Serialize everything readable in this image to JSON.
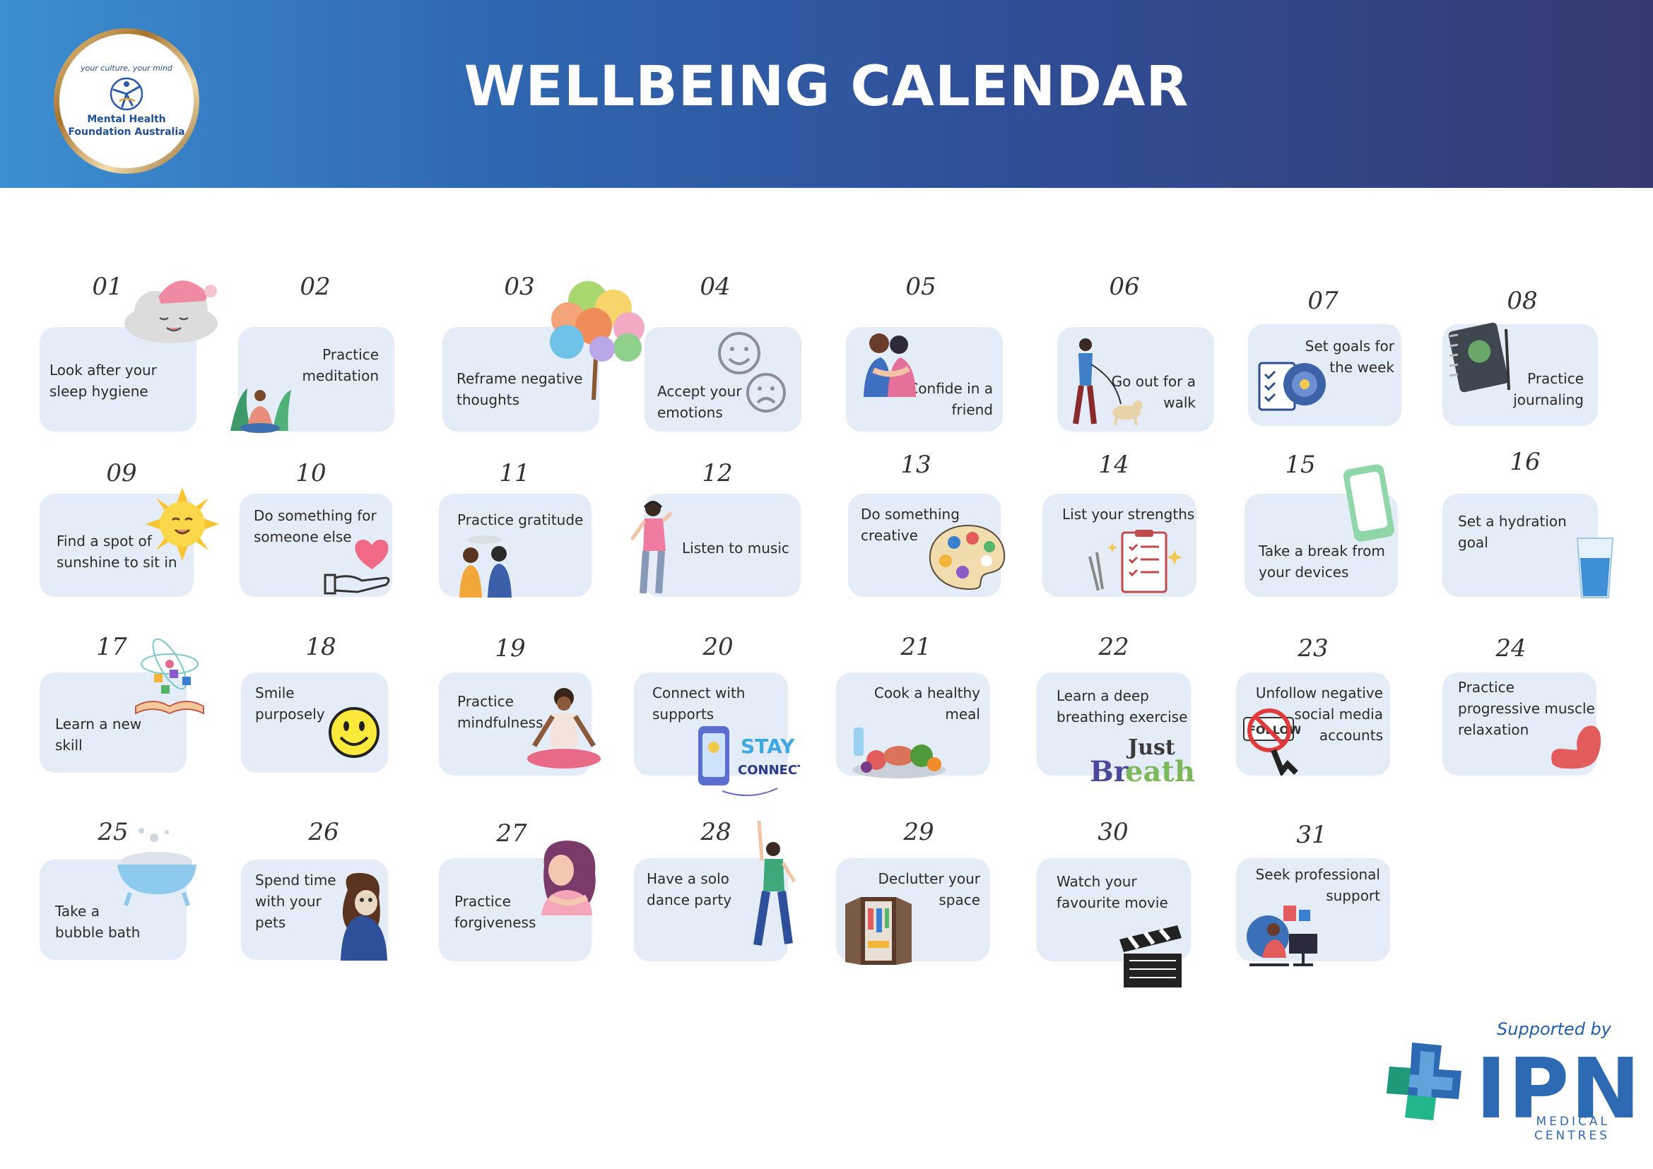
{
  "header": {
    "title": "WELLBEING CALENDAR",
    "logo_tagline": "your culture, your mind",
    "logo_name": "Mental Health\nFoundation Australia"
  },
  "days": [
    {
      "num": "01",
      "text": "Look after your\nsleep hygiene",
      "icon": "sleepy-cloud-icon"
    },
    {
      "num": "02",
      "text": "Practice\nmeditation",
      "icon": "meditating-woman-icon"
    },
    {
      "num": "03",
      "text": "Reframe negative\nthoughts",
      "icon": "colorful-tree-icon"
    },
    {
      "num": "04",
      "text": "Accept your\nemotions",
      "icon": "happy-sad-faces-icon"
    },
    {
      "num": "05",
      "text": "Confide in a\nfriend",
      "icon": "hugging-friends-icon"
    },
    {
      "num": "06",
      "text": "Go out for a\nwalk",
      "icon": "dog-walk-icon"
    },
    {
      "num": "07",
      "text": "Set goals for\nthe week",
      "icon": "goal-checklist-icon"
    },
    {
      "num": "08",
      "text": "Practice\njournaling",
      "icon": "journal-icon"
    },
    {
      "num": "09",
      "text": "Find a spot of\nsunshine to sit in",
      "icon": "sun-icon"
    },
    {
      "num": "10",
      "text": "Do something for\nsomeone else",
      "icon": "heart-in-hand-icon"
    },
    {
      "num": "11",
      "text": "Practice gratitude",
      "icon": "grateful-couple-icon"
    },
    {
      "num": "12",
      "text": "Listen to music",
      "icon": "headphones-person-icon"
    },
    {
      "num": "13",
      "text": "Do something\ncreative",
      "icon": "paint-palette-icon"
    },
    {
      "num": "14",
      "text": "List your strengths",
      "icon": "clipboard-list-icon"
    },
    {
      "num": "15",
      "text": "Take a break from\nyour devices",
      "icon": "smartphone-icon"
    },
    {
      "num": "16",
      "text": "Set a hydration\ngoal",
      "icon": "water-glass-icon"
    },
    {
      "num": "17",
      "text": "Learn a new\nskill",
      "icon": "open-book-icon"
    },
    {
      "num": "18",
      "text": "Smile\npurposely",
      "icon": "smiley-face-icon"
    },
    {
      "num": "19",
      "text": "Practice\nmindfulness",
      "icon": "lotus-pose-icon"
    },
    {
      "num": "20",
      "text": "Connect with\nsupports",
      "icon": "stay-connected-phone-icon",
      "icon_text": "STAY CONNECTED"
    },
    {
      "num": "21",
      "text": "Cook a healthy\nmeal",
      "icon": "healthy-food-icon"
    },
    {
      "num": "22",
      "text": "Learn a deep\nbreathing exercise",
      "icon": "just-breathe-icon",
      "icon_text": "Just Breathe"
    },
    {
      "num": "23",
      "text": "Unfollow negative\nsocial media\naccounts",
      "icon": "unfollow-icon",
      "icon_text": "FOLLOW"
    },
    {
      "num": "24",
      "text": "Practice\nprogressive muscle\nrelaxation",
      "icon": "flexed-arm-icon"
    },
    {
      "num": "25",
      "text": "Take a\nbubble bath",
      "icon": "bathtub-icon"
    },
    {
      "num": "26",
      "text": "Spend time\nwith your\npets",
      "icon": "hugging-pet-icon"
    },
    {
      "num": "27",
      "text": "Practice\nforgiveness",
      "icon": "self-hug-icon"
    },
    {
      "num": "28",
      "text": "Have a solo\ndance party",
      "icon": "dancing-person-icon"
    },
    {
      "num": "29",
      "text": "Declutter your\nspace",
      "icon": "wardrobe-icon"
    },
    {
      "num": "30",
      "text": "Watch your\nfavourite movie",
      "icon": "clapperboard-icon"
    },
    {
      "num": "31",
      "text": "Seek professional\nsupport",
      "icon": "counselling-session-icon"
    }
  ],
  "footer": {
    "supported_by": "Supported by",
    "sponsor_name": "IPN",
    "sponsor_sub": "MEDICAL CENTRES"
  }
}
